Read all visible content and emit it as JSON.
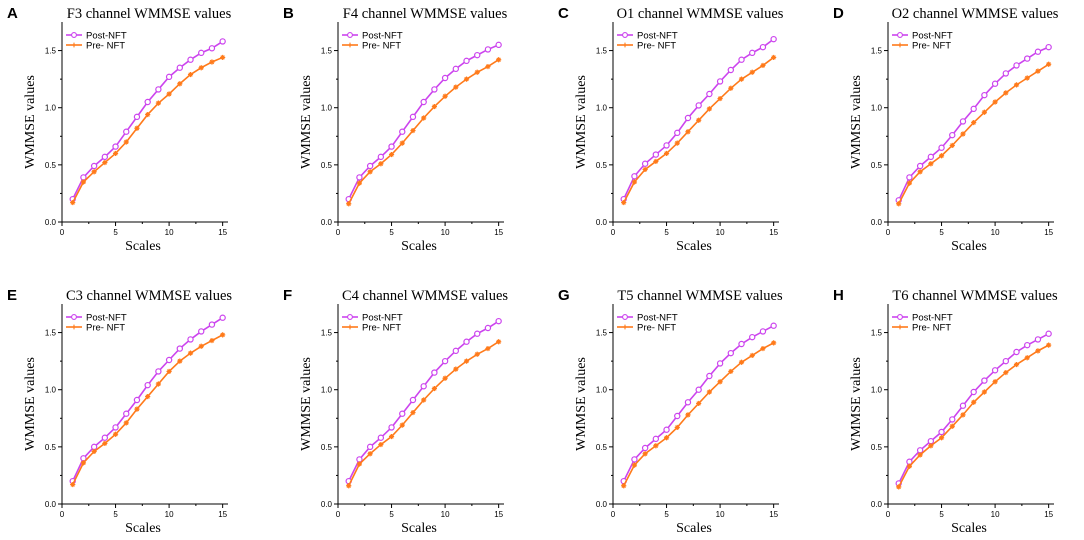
{
  "colors": {
    "post": "#cc44ee",
    "pre": "#ff7a1a"
  },
  "chart_data": [
    {
      "type": "line",
      "panel": "A",
      "title": "F3 channel WMMSE values",
      "xlabel": "Scales",
      "ylabel": "WMMSE values",
      "xlim": [
        0,
        15.5
      ],
      "ylim": [
        0,
        1.75
      ],
      "xticks": [
        0,
        5,
        10,
        15
      ],
      "yticks": [
        0.0,
        0.5,
        1.0,
        1.5
      ],
      "xtick_labels": [
        "0",
        "5",
        "10",
        "15"
      ],
      "ytick_labels": [
        "0.0",
        "0.5",
        "1.0",
        "1.5"
      ],
      "x": [
        1,
        2,
        3,
        4,
        5,
        6,
        7,
        8,
        9,
        10,
        11,
        12,
        13,
        14,
        15
      ],
      "series": [
        {
          "name": "Post-NFT",
          "values": [
            0.2,
            0.39,
            0.49,
            0.57,
            0.66,
            0.79,
            0.92,
            1.05,
            1.16,
            1.27,
            1.35,
            1.42,
            1.48,
            1.52,
            1.58
          ]
        },
        {
          "name": "Pre- NFT",
          "values": [
            0.17,
            0.35,
            0.44,
            0.52,
            0.6,
            0.7,
            0.82,
            0.94,
            1.04,
            1.12,
            1.21,
            1.29,
            1.35,
            1.4,
            1.44
          ]
        }
      ]
    },
    {
      "type": "line",
      "panel": "B",
      "title": "F4 channel WMMSE values",
      "xlabel": "Scales",
      "ylabel": "WMMSE values",
      "xlim": [
        0,
        15.5
      ],
      "ylim": [
        0,
        1.75
      ],
      "xticks": [
        0,
        5,
        10,
        15
      ],
      "yticks": [
        0.0,
        0.5,
        1.0,
        1.5
      ],
      "xtick_labels": [
        "0",
        "5",
        "10",
        "15"
      ],
      "ytick_labels": [
        "0.0",
        "0.5",
        "1.0",
        "1.5"
      ],
      "x": [
        1,
        2,
        3,
        4,
        5,
        6,
        7,
        8,
        9,
        10,
        11,
        12,
        13,
        14,
        15
      ],
      "series": [
        {
          "name": "Post-NFT",
          "values": [
            0.2,
            0.39,
            0.49,
            0.57,
            0.66,
            0.79,
            0.92,
            1.05,
            1.16,
            1.26,
            1.34,
            1.41,
            1.46,
            1.51,
            1.55
          ]
        },
        {
          "name": "Pre- NFT",
          "values": [
            0.16,
            0.34,
            0.44,
            0.51,
            0.59,
            0.69,
            0.8,
            0.91,
            1.01,
            1.1,
            1.18,
            1.25,
            1.31,
            1.36,
            1.42
          ]
        }
      ]
    },
    {
      "type": "line",
      "panel": "C",
      "title": "O1 channel WMMSE values",
      "xlabel": "Scales",
      "ylabel": "WMMSE values",
      "xlim": [
        0,
        15.5
      ],
      "ylim": [
        0,
        1.75
      ],
      "xticks": [
        0,
        5,
        10,
        15
      ],
      "yticks": [
        0.0,
        0.5,
        1.0,
        1.5
      ],
      "xtick_labels": [
        "0",
        "5",
        "10",
        "15"
      ],
      "ytick_labels": [
        "0.0",
        "0.5",
        "1.0",
        "1.5"
      ],
      "x": [
        1,
        2,
        3,
        4,
        5,
        6,
        7,
        8,
        9,
        10,
        11,
        12,
        13,
        14,
        15
      ],
      "series": [
        {
          "name": "Post-NFT",
          "values": [
            0.2,
            0.4,
            0.51,
            0.59,
            0.67,
            0.78,
            0.91,
            1.02,
            1.12,
            1.23,
            1.33,
            1.42,
            1.48,
            1.53,
            1.6
          ]
        },
        {
          "name": "Pre- NFT",
          "values": [
            0.17,
            0.35,
            0.46,
            0.53,
            0.6,
            0.69,
            0.79,
            0.89,
            0.99,
            1.08,
            1.17,
            1.25,
            1.31,
            1.37,
            1.44
          ]
        }
      ]
    },
    {
      "type": "line",
      "panel": "D",
      "title": "O2 channel WMMSE values",
      "xlabel": "Scales",
      "ylabel": "WMMSE values",
      "xlim": [
        0,
        15.5
      ],
      "ylim": [
        0,
        1.75
      ],
      "xticks": [
        0,
        5,
        10,
        15
      ],
      "yticks": [
        0.0,
        0.5,
        1.0,
        1.5
      ],
      "xtick_labels": [
        "0",
        "5",
        "10",
        "15"
      ],
      "ytick_labels": [
        "0.0",
        "0.5",
        "1.0",
        "1.5"
      ],
      "x": [
        1,
        2,
        3,
        4,
        5,
        6,
        7,
        8,
        9,
        10,
        11,
        12,
        13,
        14,
        15
      ],
      "series": [
        {
          "name": "Post-NFT",
          "values": [
            0.19,
            0.39,
            0.49,
            0.57,
            0.65,
            0.76,
            0.88,
            0.99,
            1.11,
            1.21,
            1.3,
            1.37,
            1.43,
            1.49,
            1.53
          ]
        },
        {
          "name": "Pre- NFT",
          "values": [
            0.16,
            0.34,
            0.44,
            0.51,
            0.58,
            0.67,
            0.77,
            0.87,
            0.96,
            1.05,
            1.13,
            1.2,
            1.26,
            1.32,
            1.38
          ]
        }
      ]
    },
    {
      "type": "line",
      "panel": "E",
      "title": "C3 channel WMMSE values",
      "xlabel": "Scales",
      "ylabel": "WMMSE values",
      "xlim": [
        0,
        15.5
      ],
      "ylim": [
        0,
        1.75
      ],
      "xticks": [
        0,
        5,
        10,
        15
      ],
      "yticks": [
        0.0,
        0.5,
        1.0,
        1.5
      ],
      "xtick_labels": [
        "0",
        "5",
        "10",
        "15"
      ],
      "ytick_labels": [
        "0.0",
        "0.5",
        "1.0",
        "1.5"
      ],
      "x": [
        1,
        2,
        3,
        4,
        5,
        6,
        7,
        8,
        9,
        10,
        11,
        12,
        13,
        14,
        15
      ],
      "series": [
        {
          "name": "Post-NFT",
          "values": [
            0.2,
            0.4,
            0.5,
            0.58,
            0.67,
            0.79,
            0.91,
            1.04,
            1.16,
            1.26,
            1.36,
            1.44,
            1.51,
            1.57,
            1.63
          ]
        },
        {
          "name": "Pre- NFT",
          "values": [
            0.17,
            0.36,
            0.46,
            0.53,
            0.61,
            0.71,
            0.83,
            0.94,
            1.05,
            1.16,
            1.25,
            1.32,
            1.38,
            1.43,
            1.48
          ]
        }
      ]
    },
    {
      "type": "line",
      "panel": "F",
      "title": "C4 channel WMMSE values",
      "xlabel": "Scales",
      "ylabel": "WMMSE values",
      "xlim": [
        0,
        15.5
      ],
      "ylim": [
        0,
        1.75
      ],
      "xticks": [
        0,
        5,
        10,
        15
      ],
      "yticks": [
        0.0,
        0.5,
        1.0,
        1.5
      ],
      "xtick_labels": [
        "0",
        "5",
        "10",
        "15"
      ],
      "ytick_labels": [
        "0.0",
        "0.5",
        "1.0",
        "1.5"
      ],
      "x": [
        1,
        2,
        3,
        4,
        5,
        6,
        7,
        8,
        9,
        10,
        11,
        12,
        13,
        14,
        15
      ],
      "series": [
        {
          "name": "Post-NFT",
          "values": [
            0.2,
            0.39,
            0.5,
            0.58,
            0.67,
            0.79,
            0.91,
            1.03,
            1.15,
            1.25,
            1.34,
            1.42,
            1.49,
            1.54,
            1.6
          ]
        },
        {
          "name": "Pre- NFT",
          "values": [
            0.16,
            0.35,
            0.44,
            0.52,
            0.59,
            0.69,
            0.8,
            0.91,
            1.01,
            1.1,
            1.18,
            1.25,
            1.31,
            1.36,
            1.42
          ]
        }
      ]
    },
    {
      "type": "line",
      "panel": "G",
      "title": "T5 channel WMMSE values",
      "xlabel": "Scales",
      "ylabel": "WMMSE values",
      "xlim": [
        0,
        15.5
      ],
      "ylim": [
        0,
        1.75
      ],
      "xticks": [
        0,
        5,
        10,
        15
      ],
      "yticks": [
        0.0,
        0.5,
        1.0,
        1.5
      ],
      "xtick_labels": [
        "0",
        "5",
        "10",
        "15"
      ],
      "ytick_labels": [
        "0.0",
        "0.5",
        "1.0",
        "1.5"
      ],
      "x": [
        1,
        2,
        3,
        4,
        5,
        6,
        7,
        8,
        9,
        10,
        11,
        12,
        13,
        14,
        15
      ],
      "series": [
        {
          "name": "Post-NFT",
          "values": [
            0.2,
            0.39,
            0.49,
            0.57,
            0.65,
            0.77,
            0.89,
            1.0,
            1.12,
            1.23,
            1.32,
            1.4,
            1.46,
            1.51,
            1.56
          ]
        },
        {
          "name": "Pre- NFT",
          "values": [
            0.16,
            0.34,
            0.44,
            0.51,
            0.58,
            0.67,
            0.78,
            0.88,
            0.98,
            1.07,
            1.16,
            1.24,
            1.3,
            1.36,
            1.41
          ]
        }
      ]
    },
    {
      "type": "line",
      "panel": "H",
      "title": "T6 channel WMMSE values",
      "xlabel": "Scales",
      "ylabel": "WMMSE values",
      "xlim": [
        0,
        15.5
      ],
      "ylim": [
        0,
        1.75
      ],
      "xticks": [
        0,
        5,
        10,
        15
      ],
      "yticks": [
        0.0,
        0.5,
        1.0,
        1.5
      ],
      "xtick_labels": [
        "0",
        "5",
        "10",
        "15"
      ],
      "ytick_labels": [
        "0.0",
        "0.5",
        "1.0",
        "1.5"
      ],
      "x": [
        1,
        2,
        3,
        4,
        5,
        6,
        7,
        8,
        9,
        10,
        11,
        12,
        13,
        14,
        15
      ],
      "series": [
        {
          "name": "Post-NFT",
          "values": [
            0.18,
            0.37,
            0.47,
            0.55,
            0.63,
            0.74,
            0.86,
            0.98,
            1.08,
            1.17,
            1.25,
            1.33,
            1.39,
            1.44,
            1.49
          ]
        },
        {
          "name": "Pre- NFT",
          "values": [
            0.15,
            0.33,
            0.43,
            0.51,
            0.58,
            0.68,
            0.78,
            0.89,
            0.98,
            1.07,
            1.15,
            1.22,
            1.28,
            1.34,
            1.39
          ]
        }
      ]
    }
  ]
}
